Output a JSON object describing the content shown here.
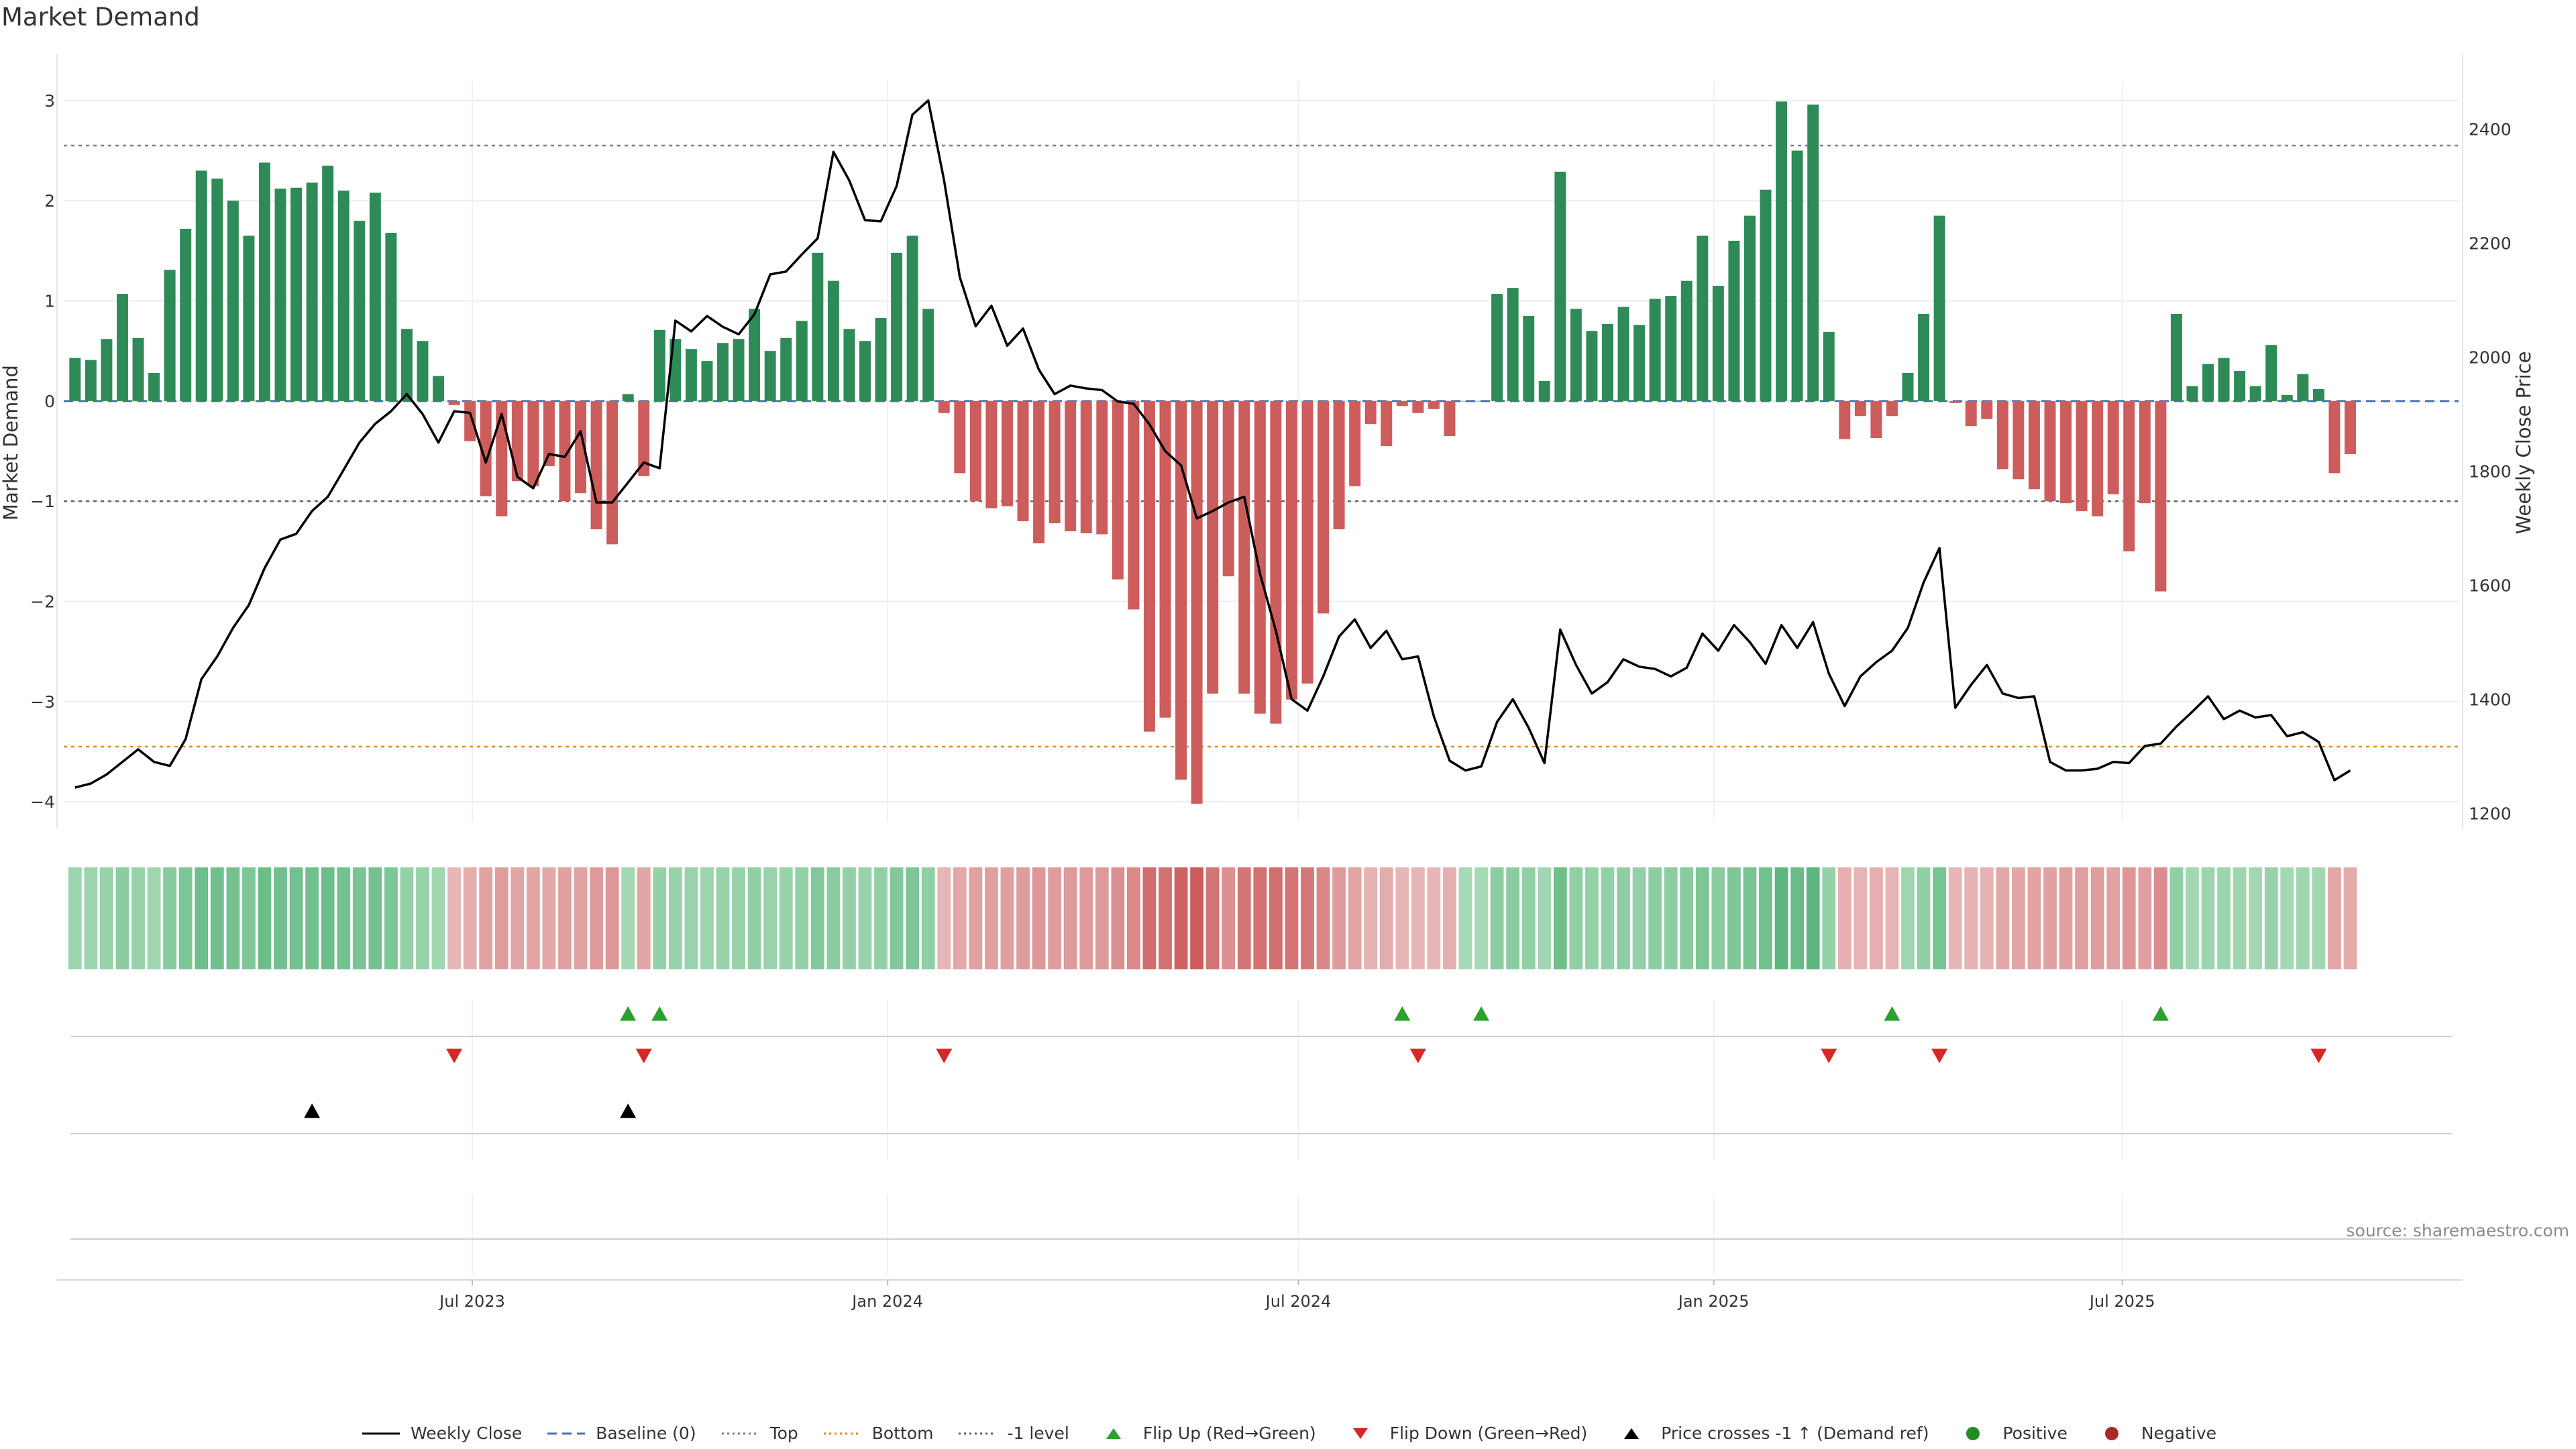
{
  "title": "Market Demand",
  "source": "source: sharemaestro.com",
  "colors": {
    "positive": "#2e8b57",
    "negative": "#cd5c5c",
    "price_line": "#000000",
    "baseline": "#4c72b0",
    "top_line": "#7a7aa0",
    "bottom_line": "#e08a1e",
    "minus1_line": "#606070",
    "flip_up": "#2ca02c",
    "flip_down": "#d62728",
    "cross": "#000000"
  },
  "chart_data": {
    "type": "bar",
    "title": "Market Demand",
    "ylabel_left": "Market Demand",
    "ylabel_right": "Weekly Close Price",
    "y_left_range": [
      -4.2,
      3.2
    ],
    "y_left_ticks": [
      3,
      2,
      1,
      0,
      -1,
      -2,
      -3,
      -4
    ],
    "y_right_range": [
      1185,
      2485
    ],
    "y_right_ticks": [
      2400,
      2200,
      2000,
      1800,
      1600,
      1400,
      1200
    ],
    "x_range": [
      "2023-01-01",
      "2025-11-27"
    ],
    "x_ticks": [
      {
        "date": "2023-07-01",
        "label": "Jul 2023"
      },
      {
        "date": "2024-01-01",
        "label": "Jan 2024"
      },
      {
        "date": "2024-07-01",
        "label": "Jul 2024"
      },
      {
        "date": "2025-01-01",
        "label": "Jan 2025"
      },
      {
        "date": "2025-07-01",
        "label": "Jul 2025"
      }
    ],
    "first_week": "2023-01-06",
    "reference_lines": {
      "baseline": 0,
      "top": 2.55,
      "bottom": -3.45,
      "minus_one": -1
    },
    "demand": [
      0.43,
      0.41,
      0.62,
      1.07,
      0.63,
      0.28,
      1.31,
      1.72,
      2.3,
      2.22,
      2.0,
      1.65,
      2.38,
      2.12,
      2.13,
      2.18,
      2.35,
      2.1,
      1.8,
      2.08,
      1.68,
      0.72,
      0.6,
      0.25,
      -0.04,
      -0.4,
      -0.95,
      -1.15,
      -0.8,
      -0.85,
      -0.65,
      -1.0,
      -0.92,
      -1.28,
      -1.43,
      0.07,
      -0.75,
      0.71,
      0.62,
      0.52,
      0.4,
      0.58,
      0.62,
      0.92,
      0.5,
      0.63,
      0.8,
      1.48,
      1.2,
      0.72,
      0.6,
      0.83,
      1.48,
      1.65,
      0.92,
      -0.12,
      -0.72,
      -1.0,
      -1.07,
      -1.05,
      -1.2,
      -1.42,
      -1.22,
      -1.3,
      -1.32,
      -1.33,
      -1.78,
      -2.08,
      -3.3,
      -3.16,
      -3.78,
      -4.02,
      -2.92,
      -1.75,
      -2.92,
      -3.12,
      -3.22,
      -2.98,
      -2.82,
      -2.12,
      -1.28,
      -0.85,
      -0.23,
      -0.45,
      -0.05,
      -0.12,
      -0.08,
      -0.35,
      0.0,
      0.0,
      1.07,
      1.13,
      0.85,
      0.2,
      2.29,
      0.92,
      0.7,
      0.77,
      0.94,
      0.76,
      1.02,
      1.05,
      1.2,
      1.65,
      1.15,
      1.6,
      1.85,
      2.11,
      2.99,
      2.5,
      2.96,
      0.69,
      -0.38,
      -0.15,
      -0.37,
      -0.15,
      0.28,
      0.87,
      1.85,
      -0.02,
      -0.25,
      -0.18,
      -0.68,
      -0.78,
      -0.88,
      -1.0,
      -1.02,
      -1.1,
      -1.15,
      -0.93,
      -1.5,
      -1.02,
      -1.9,
      0.87,
      0.15,
      0.37,
      0.43,
      0.3,
      0.15,
      0.56,
      0.06,
      0.27,
      0.12,
      -0.72,
      -0.53
    ],
    "weekly_close": [
      1245,
      1252,
      1268,
      1290,
      1312,
      1290,
      1283,
      1330,
      1435,
      1475,
      1525,
      1565,
      1630,
      1680,
      1690,
      1730,
      1755,
      1802,
      1850,
      1883,
      1905,
      1935,
      1900,
      1850,
      1905,
      1902,
      1815,
      1900,
      1790,
      1770,
      1830,
      1825,
      1870,
      1745,
      1745,
      1780,
      1815,
      1805,
      2064,
      2045,
      2072,
      2053,
      2040,
      2075,
      2145,
      2150,
      2180,
      2208,
      2360,
      2310,
      2240,
      2238,
      2300,
      2425,
      2450,
      2310,
      2140,
      2054,
      2090,
      2020,
      2050,
      1978,
      1935,
      1950,
      1945,
      1942,
      1922,
      1918,
      1882,
      1835,
      1810,
      1717,
      1730,
      1745,
      1755,
      1620,
      1520,
      1400,
      1380,
      1440,
      1510,
      1540,
      1490,
      1520,
      1470,
      1475,
      1370,
      1292,
      1275,
      1282,
      1360,
      1400,
      1350,
      1288,
      1522,
      1460,
      1410,
      1430,
      1470,
      1457,
      1453,
      1440,
      1455,
      1515,
      1485,
      1530,
      1500,
      1462,
      1530,
      1490,
      1535,
      1445,
      1388,
      1440,
      1465,
      1485,
      1525,
      1605,
      1665,
      1385,
      1425,
      1460,
      1410,
      1402,
      1405,
      1290,
      1275,
      1275,
      1278,
      1290,
      1288,
      1318,
      1322,
      1352,
      1378,
      1405,
      1365,
      1380,
      1368,
      1372,
      1335,
      1342,
      1325,
      1258,
      1275
    ],
    "flip_up_weeks": [
      35,
      37,
      84,
      89,
      115,
      132
    ],
    "flip_down_weeks": [
      24,
      36,
      55,
      85,
      111,
      118,
      142
    ],
    "price_cross_weeks": [
      15,
      35
    ],
    "legend": [
      {
        "key": "weekly_close",
        "label": "Weekly Close"
      },
      {
        "key": "baseline",
        "label": "Baseline (0)"
      },
      {
        "key": "top",
        "label": "Top"
      },
      {
        "key": "bottom",
        "label": "Bottom"
      },
      {
        "key": "minus_one",
        "label": "-1 level"
      },
      {
        "key": "flip_up",
        "label": "Flip Up (Red→Green)"
      },
      {
        "key": "flip_down",
        "label": "Flip Down (Green→Red)"
      },
      {
        "key": "price_cross",
        "label": "Price crosses -1 ↑ (Demand ref)"
      },
      {
        "key": "positive",
        "label": "Positive"
      },
      {
        "key": "negative",
        "label": "Negative"
      }
    ]
  }
}
